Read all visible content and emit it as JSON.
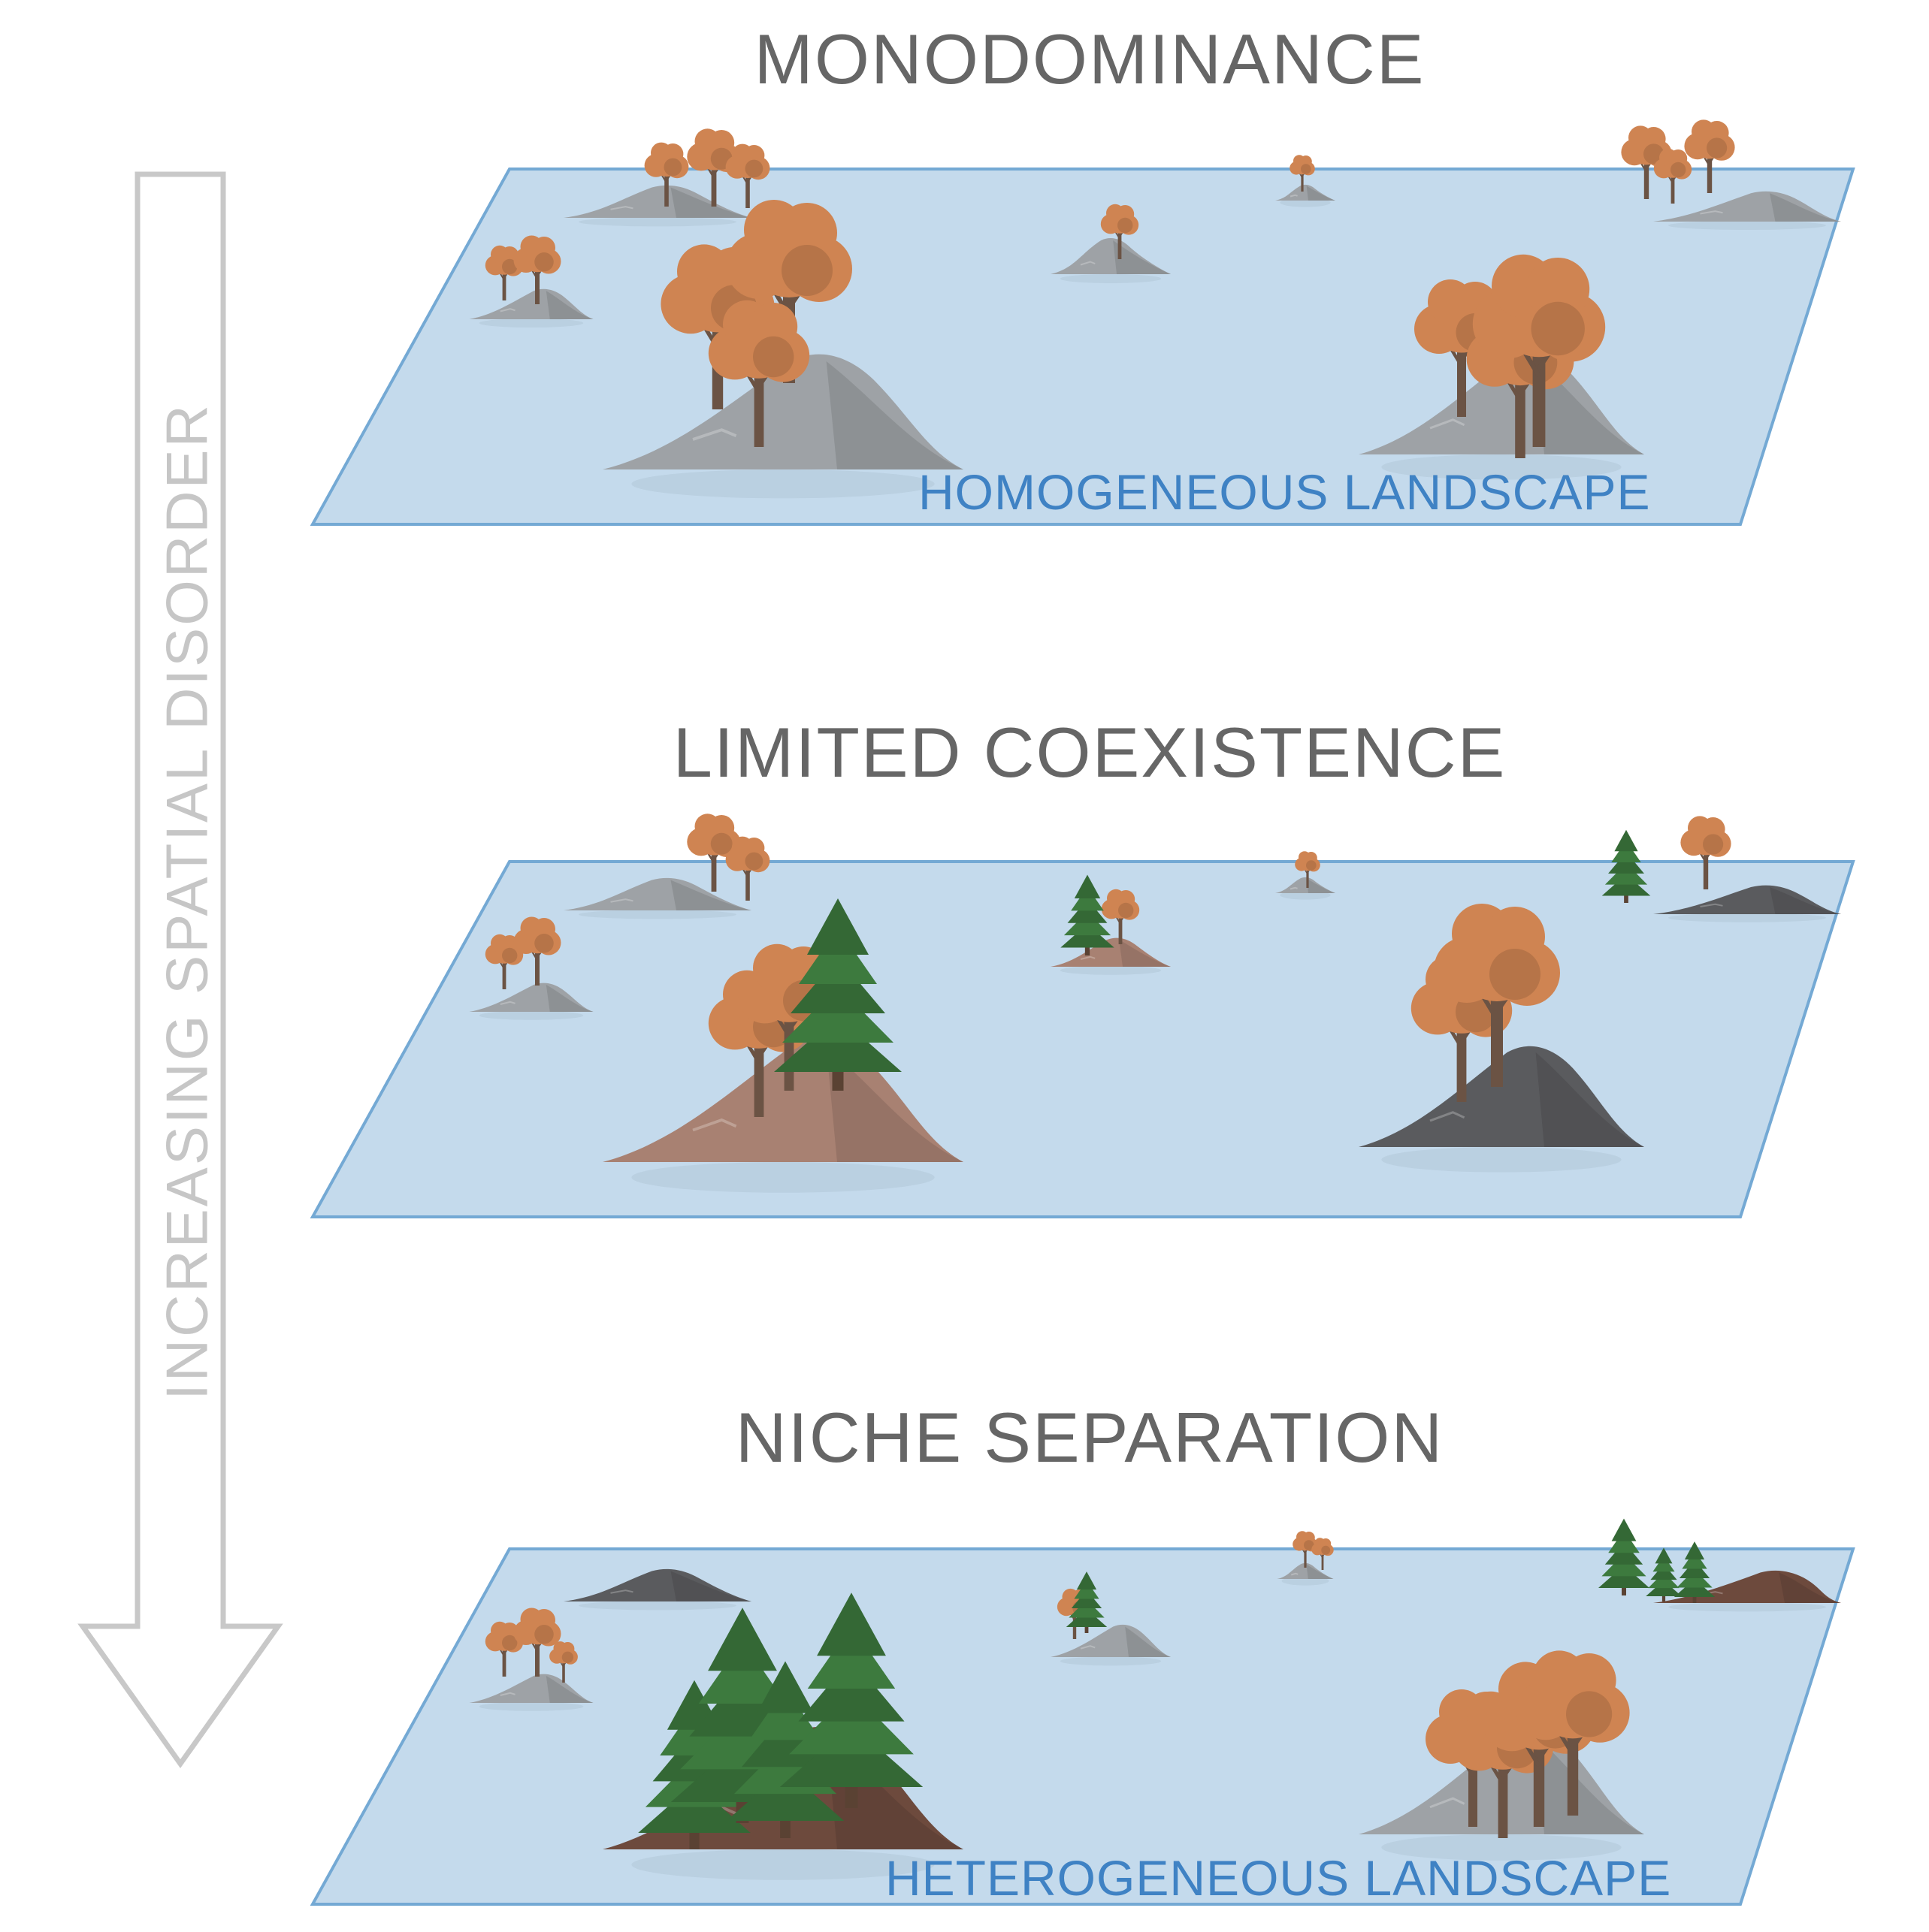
{
  "arrow": {
    "label": "INCREASING SPATIAL DISORDER"
  },
  "panels": [
    {
      "title": "MONODOMINANCE",
      "label": "HOMOGENEOUS LANDSCAPE"
    },
    {
      "title": "LIMITED COEXISTENCE",
      "label": ""
    },
    {
      "title": "NICHE SEPARATION",
      "label": "HETEROGENEOUS LANDSCAPE"
    }
  ],
  "colors": {
    "water": "#c4daec",
    "water_edge": "#74a9d4",
    "deciduous_tree": "#cf8452",
    "conifer_tree": "#3d7a3e",
    "grey_rock": "#9ea2a6",
    "dark_rock": "#5a5b5e",
    "brown_rock": "#6d4a3d",
    "tan_rock": "#a88172"
  }
}
